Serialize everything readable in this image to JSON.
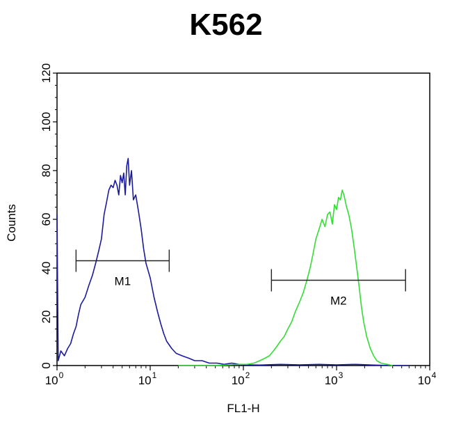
{
  "chart_data": {
    "type": "line",
    "title": "K562",
    "xlabel": "FL1-H",
    "ylabel": "Counts",
    "x_scale": "log",
    "xlim": [
      1,
      10000
    ],
    "ylim": [
      0,
      120
    ],
    "x_ticks": [
      {
        "base": "10",
        "exp": "0",
        "value": 1
      },
      {
        "base": "10",
        "exp": "1",
        "value": 10
      },
      {
        "base": "10",
        "exp": "2",
        "value": 100
      },
      {
        "base": "10",
        "exp": "3",
        "value": 1000
      },
      {
        "base": "10",
        "exp": "4",
        "value": 10000
      }
    ],
    "y_ticks": [
      "0",
      "20",
      "40",
      "60",
      "80",
      "100",
      "120"
    ],
    "y_tick_values": [
      0,
      20,
      40,
      60,
      80,
      100,
      120
    ],
    "grid": false,
    "series": [
      {
        "color": "#1a1a9c",
        "points": [
          [
            1.0,
            62
          ],
          [
            1.03,
            2
          ],
          [
            1.1,
            6
          ],
          [
            1.2,
            4
          ],
          [
            1.3,
            7
          ],
          [
            1.4,
            9
          ],
          [
            1.5,
            13
          ],
          [
            1.6,
            16
          ],
          [
            1.7,
            21
          ],
          [
            1.8,
            25
          ],
          [
            2.0,
            28
          ],
          [
            2.2,
            33
          ],
          [
            2.4,
            37
          ],
          [
            2.6,
            42
          ],
          [
            2.8,
            47
          ],
          [
            3.0,
            52
          ],
          [
            3.2,
            62
          ],
          [
            3.4,
            67
          ],
          [
            3.6,
            72
          ],
          [
            3.8,
            74
          ],
          [
            4.0,
            73
          ],
          [
            4.2,
            76
          ],
          [
            4.4,
            74
          ],
          [
            4.6,
            70
          ],
          [
            4.8,
            78
          ],
          [
            5.0,
            75
          ],
          [
            5.2,
            79
          ],
          [
            5.4,
            70
          ],
          [
            5.6,
            82
          ],
          [
            5.8,
            85
          ],
          [
            6.0,
            74
          ],
          [
            6.3,
            80
          ],
          [
            6.6,
            68
          ],
          [
            7.0,
            70
          ],
          [
            7.5,
            63
          ],
          [
            8.0,
            56
          ],
          [
            8.5,
            48
          ],
          [
            9.0,
            42
          ],
          [
            10.0,
            36
          ],
          [
            11.0,
            28
          ],
          [
            12.0,
            22
          ],
          [
            13.0,
            17
          ],
          [
            14.0,
            13
          ],
          [
            15.0,
            10
          ],
          [
            17.0,
            7
          ],
          [
            19.0,
            5
          ],
          [
            22.0,
            4
          ],
          [
            26.0,
            3
          ],
          [
            30.0,
            2
          ],
          [
            36.0,
            2
          ],
          [
            43.0,
            1
          ],
          [
            52.0,
            1
          ],
          [
            62.0,
            0.5
          ],
          [
            75.0,
            1
          ],
          [
            90.0,
            0.5
          ],
          [
            110.0,
            0.3
          ],
          [
            150.0,
            0.2
          ],
          [
            250.0,
            0.5
          ],
          [
            400.0,
            0.3
          ],
          [
            650.0,
            0.5
          ],
          [
            1000.0,
            0.3
          ],
          [
            1600.0,
            0.5
          ],
          [
            2500.0,
            0.2
          ],
          [
            4000.0,
            0
          ],
          [
            6000.0,
            0
          ]
        ]
      },
      {
        "color": "#33dd33",
        "points": [
          [
            20.0,
            0
          ],
          [
            50.0,
            0
          ],
          [
            90.0,
            0.5
          ],
          [
            110.0,
            0.5
          ],
          [
            130.0,
            1
          ],
          [
            150.0,
            2
          ],
          [
            170.0,
            3
          ],
          [
            190.0,
            4
          ],
          [
            210.0,
            6
          ],
          [
            230.0,
            8
          ],
          [
            250.0,
            10
          ],
          [
            275.0,
            12
          ],
          [
            300.0,
            15
          ],
          [
            330.0,
            18
          ],
          [
            360.0,
            22
          ],
          [
            400.0,
            26
          ],
          [
            440.0,
            30
          ],
          [
            480.0,
            35
          ],
          [
            520.0,
            40
          ],
          [
            560.0,
            46
          ],
          [
            600.0,
            52
          ],
          [
            650.0,
            56
          ],
          [
            700.0,
            60
          ],
          [
            750.0,
            57
          ],
          [
            800.0,
            62
          ],
          [
            850.0,
            63
          ],
          [
            900.0,
            58
          ],
          [
            950.0,
            66
          ],
          [
            1000.0,
            64
          ],
          [
            1050.0,
            69
          ],
          [
            1100.0,
            68
          ],
          [
            1150.0,
            72
          ],
          [
            1200.0,
            70
          ],
          [
            1280.0,
            65
          ],
          [
            1350.0,
            62
          ],
          [
            1450.0,
            56
          ],
          [
            1550.0,
            48
          ],
          [
            1650.0,
            40
          ],
          [
            1750.0,
            32
          ],
          [
            1850.0,
            24
          ],
          [
            1950.0,
            18
          ],
          [
            2100.0,
            12
          ],
          [
            2300.0,
            7
          ],
          [
            2500.0,
            4
          ],
          [
            2700.0,
            2
          ],
          [
            3000.0,
            1
          ],
          [
            3500.0,
            0.5
          ],
          [
            4000.0,
            0
          ]
        ]
      }
    ],
    "markers": [
      {
        "label": "M1",
        "x_start": 1.6,
        "x_end": 16,
        "y": 43
      },
      {
        "label": "M2",
        "x_start": 200,
        "x_end": 5500,
        "y": 35
      }
    ]
  }
}
